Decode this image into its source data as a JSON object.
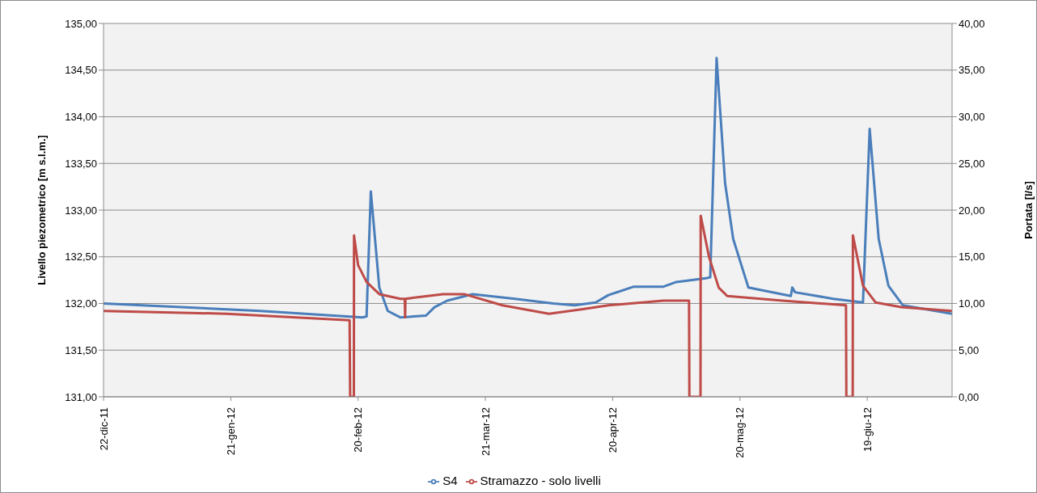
{
  "chart_data": {
    "type": "line",
    "ylabel": "Livello piezometrico [m s.l.m.]",
    "y2label": "Portata [l/s]",
    "xlim": [
      "2011-12-22",
      "2012-07-09"
    ],
    "xticks": [
      {
        "value": "2011-12-22",
        "label": "22-dic-11"
      },
      {
        "value": "2012-01-21",
        "label": "21-gen-12"
      },
      {
        "value": "2012-02-20",
        "label": "20-feb-12"
      },
      {
        "value": "2012-03-21",
        "label": "21-mar-12"
      },
      {
        "value": "2012-04-20",
        "label": "20-apr-12"
      },
      {
        "value": "2012-05-20",
        "label": "20-mag-12"
      },
      {
        "value": "2012-06-19",
        "label": "19-giu-12"
      }
    ],
    "ylim": [
      131,
      135
    ],
    "yticks": [
      {
        "value": 131,
        "label": "131,00"
      },
      {
        "value": 131.5,
        "label": "131,50"
      },
      {
        "value": 132,
        "label": "132,00"
      },
      {
        "value": 132.5,
        "label": "132,50"
      },
      {
        "value": 133,
        "label": "133,00"
      },
      {
        "value": 133.5,
        "label": "133,50"
      },
      {
        "value": 134,
        "label": "134,00"
      },
      {
        "value": 134.5,
        "label": "134,50"
      },
      {
        "value": 135,
        "label": "135,00"
      }
    ],
    "y2lim": [
      0,
      40
    ],
    "y2ticks": [
      {
        "value": 0,
        "label": "0,00"
      },
      {
        "value": 5,
        "label": "5,00"
      },
      {
        "value": 10,
        "label": "10,00"
      },
      {
        "value": 15,
        "label": "15,00"
      },
      {
        "value": 20,
        "label": "20,00"
      },
      {
        "value": 25,
        "label": "25,00"
      },
      {
        "value": 30,
        "label": "30,00"
      },
      {
        "value": 35,
        "label": "35,00"
      },
      {
        "value": 40,
        "label": "40,00"
      }
    ],
    "grid": "y",
    "legend": "bottom",
    "marker": "none",
    "line_style": "solid",
    "series": [
      {
        "name": "S4",
        "color": "#4a7ebb",
        "x": [
          "2011-12-22",
          "2012-01-28",
          "2012-02-21",
          "2012-02-22",
          "2012-02-23",
          "2012-02-25",
          "2012-02-27",
          "2012-03-01",
          "2012-03-07",
          "2012-03-09",
          "2012-03-12",
          "2012-03-18",
          "2012-03-28",
          "2012-04-06",
          "2012-04-11",
          "2012-04-16",
          "2012-04-19",
          "2012-04-25",
          "2012-05-02",
          "2012-05-05",
          "2012-05-12",
          "2012-05-13",
          "2012-05-14T12:00",
          "2012-05-16T12:00",
          "2012-05-18T10:00",
          "2012-05-22",
          "2012-06-01",
          "2012-06-01T08:00",
          "2012-06-02",
          "2012-06-11",
          "2012-06-18",
          "2012-06-19T14:00",
          "2012-06-21T17:00",
          "2012-06-24",
          "2012-06-27T10:00",
          "2012-07-09"
        ],
        "values": [
          132.0,
          131.92,
          131.85,
          131.86,
          133.2,
          132.17,
          131.92,
          131.85,
          131.87,
          131.96,
          132.03,
          132.1,
          132.05,
          132.0,
          131.98,
          132.01,
          132.09,
          132.18,
          132.18,
          132.23,
          132.27,
          132.28,
          134.63,
          133.29,
          132.69,
          132.17,
          132.08,
          132.17,
          132.12,
          132.05,
          132.01,
          133.87,
          132.69,
          132.19,
          131.98,
          131.89
        ]
      },
      {
        "name": "Stramazzo - solo livelli",
        "color": "#be4b48",
        "axis": "y2",
        "x": [
          "2011-12-22",
          "2012-01-20",
          "2012-02-18",
          "2012-02-18T03:00",
          "2012-02-19",
          "2012-02-19T01:00",
          "2012-02-20",
          "2012-02-22",
          "2012-02-25",
          "2012-03-01",
          "2012-03-02",
          "2012-03-02T02:00",
          "2012-03-02T04:00",
          "2012-03-11",
          "2012-03-16",
          "2012-03-25",
          "2012-04-05",
          "2012-04-13",
          "2012-04-19",
          "2012-05-02",
          "2012-05-08",
          "2012-05-08T02:00",
          "2012-05-10T17:00",
          "2012-05-10T18:00",
          "2012-05-12T17:00",
          "2012-05-15",
          "2012-05-17",
          "2012-05-30",
          "2012-06-14",
          "2012-06-14T02:00",
          "2012-06-15T14:00",
          "2012-06-15T15:00",
          "2012-06-18",
          "2012-06-21",
          "2012-06-27",
          "2012-07-09"
        ],
        "values": [
          9.2,
          8.9,
          8.2,
          0,
          0,
          17.3,
          14.1,
          12.3,
          11.0,
          10.5,
          10.5,
          8.5,
          10.5,
          11.0,
          11.0,
          9.8,
          8.9,
          9.4,
          9.8,
          10.3,
          10.3,
          0,
          0,
          19.4,
          15.0,
          11.7,
          10.8,
          10.3,
          9.8,
          0,
          0,
          17.3,
          11.9,
          10.1,
          9.6,
          9.2
        ]
      }
    ]
  }
}
